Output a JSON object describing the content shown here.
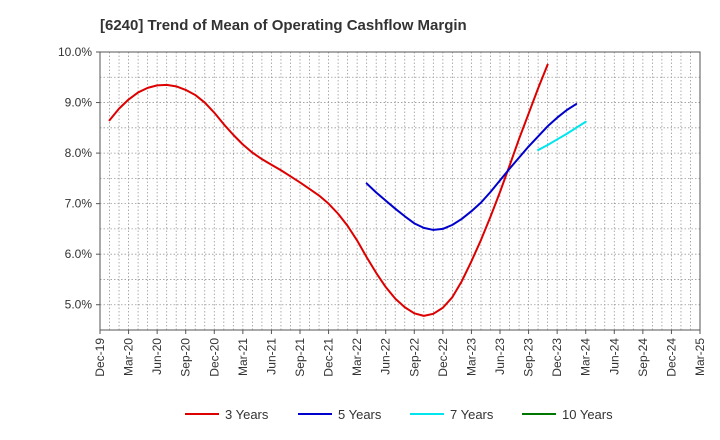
{
  "chart_data": {
    "type": "line",
    "title": "[6240]  Trend of Mean of Operating Cashflow Margin",
    "xlabel": "",
    "ylabel": "",
    "x_ticks": [
      "Dec-19",
      "Mar-20",
      "Jun-20",
      "Sep-20",
      "Dec-20",
      "Mar-21",
      "Jun-21",
      "Sep-21",
      "Dec-21",
      "Mar-22",
      "Jun-22",
      "Sep-22",
      "Dec-22",
      "Mar-23",
      "Jun-23",
      "Sep-23",
      "Dec-23",
      "Mar-24",
      "Jun-24",
      "Sep-24",
      "Dec-24",
      "Mar-25"
    ],
    "y_ticks": [
      "5.0%",
      "6.0%",
      "7.0%",
      "8.0%",
      "9.0%",
      "10.0%"
    ],
    "ylim": [
      4.5,
      10.0
    ],
    "grid": true,
    "legend_position": "bottom",
    "series": [
      {
        "name": "3 Years",
        "color": "#dd0000",
        "start_index": 1,
        "values": [
          8.65,
          8.88,
          9.06,
          9.2,
          9.29,
          9.34,
          9.35,
          9.32,
          9.25,
          9.15,
          9.0,
          8.8,
          8.57,
          8.36,
          8.17,
          8.01,
          7.88,
          7.77,
          7.66,
          7.54,
          7.42,
          7.29,
          7.16,
          7.0,
          6.8,
          6.56,
          6.27,
          5.94,
          5.63,
          5.35,
          5.12,
          4.95,
          4.83,
          4.78,
          4.82,
          4.94,
          5.15,
          5.47,
          5.86,
          6.28,
          6.74,
          7.23,
          7.75,
          8.28,
          8.78,
          9.28,
          9.75
        ]
      },
      {
        "name": "5 Years",
        "color": "#0000cc",
        "start_index": 28,
        "values": [
          7.4,
          7.22,
          7.06,
          6.9,
          6.75,
          6.61,
          6.52,
          6.48,
          6.5,
          6.58,
          6.7,
          6.85,
          7.02,
          7.23,
          7.46,
          7.69,
          7.91,
          8.13,
          8.33,
          8.53,
          8.7,
          8.85,
          8.97
        ]
      },
      {
        "name": "7 Years",
        "color": "#00e5ee",
        "start_index": 46,
        "values": [
          8.06,
          8.16,
          8.27,
          8.38,
          8.5,
          8.62
        ]
      },
      {
        "name": "10 Years",
        "color": "#007700",
        "start_index": 0,
        "values": []
      }
    ]
  }
}
